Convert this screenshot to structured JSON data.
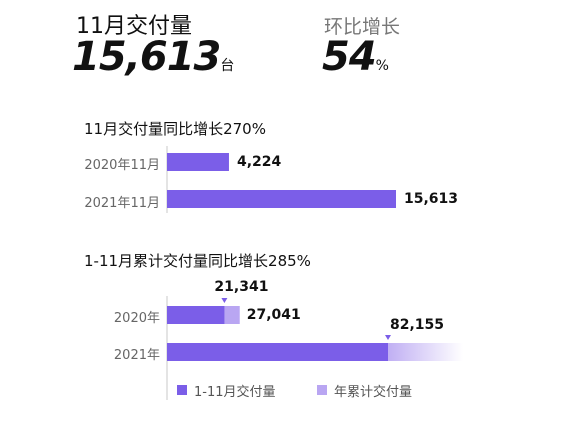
{
  "header": {
    "delivery_label": "11月交付量",
    "delivery_value": "15,613",
    "delivery_unit": "台",
    "mom_label": "环比增长",
    "mom_value": "54",
    "mom_unit": "%"
  },
  "colors": {
    "primary": "#7b5ee8",
    "secondary": "#b9a6f2",
    "axis": "#c8c8c8"
  },
  "chart_data": [
    {
      "type": "bar",
      "title": "11月交付量同比增长270%",
      "categories": [
        "2020年11月",
        "2021年11月"
      ],
      "values": [
        4224,
        15613
      ],
      "value_labels": [
        "4,224",
        "15,613"
      ],
      "xlim": [
        0,
        15613
      ]
    },
    {
      "type": "bar",
      "title": "1-11月累计交付量同比增长285%",
      "categories": [
        "2020年",
        "2021年"
      ],
      "series": [
        {
          "name": "1-11月交付量",
          "values": [
            21341,
            82155
          ]
        },
        {
          "name": "年累计交付量",
          "values": [
            27041,
            null
          ]
        }
      ],
      "value_labels": {
        "2020_primary": "21,341",
        "2020_total": "27,041",
        "2021_primary": "82,155"
      },
      "legend": "bottom"
    }
  ]
}
